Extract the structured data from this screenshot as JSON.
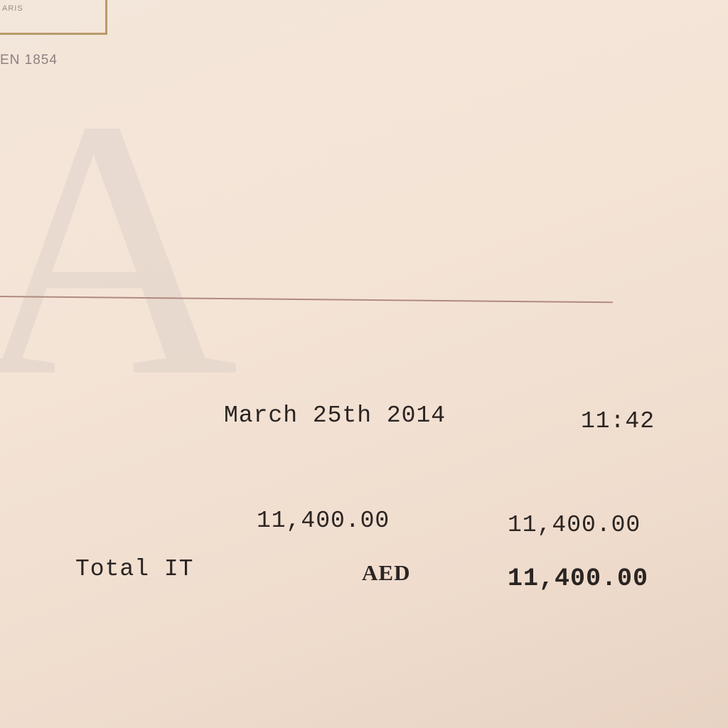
{
  "letterhead": {
    "logo_subtext": "ARIS",
    "since_text": "EN 1854",
    "watermark": "A"
  },
  "receipt": {
    "date": "March 25th 2014",
    "time": "11:42",
    "line_amount": "11,400.00",
    "line_total": "11,400.00",
    "total_label": "Total IT",
    "currency": "AED",
    "total_amount": "11,400.00"
  }
}
